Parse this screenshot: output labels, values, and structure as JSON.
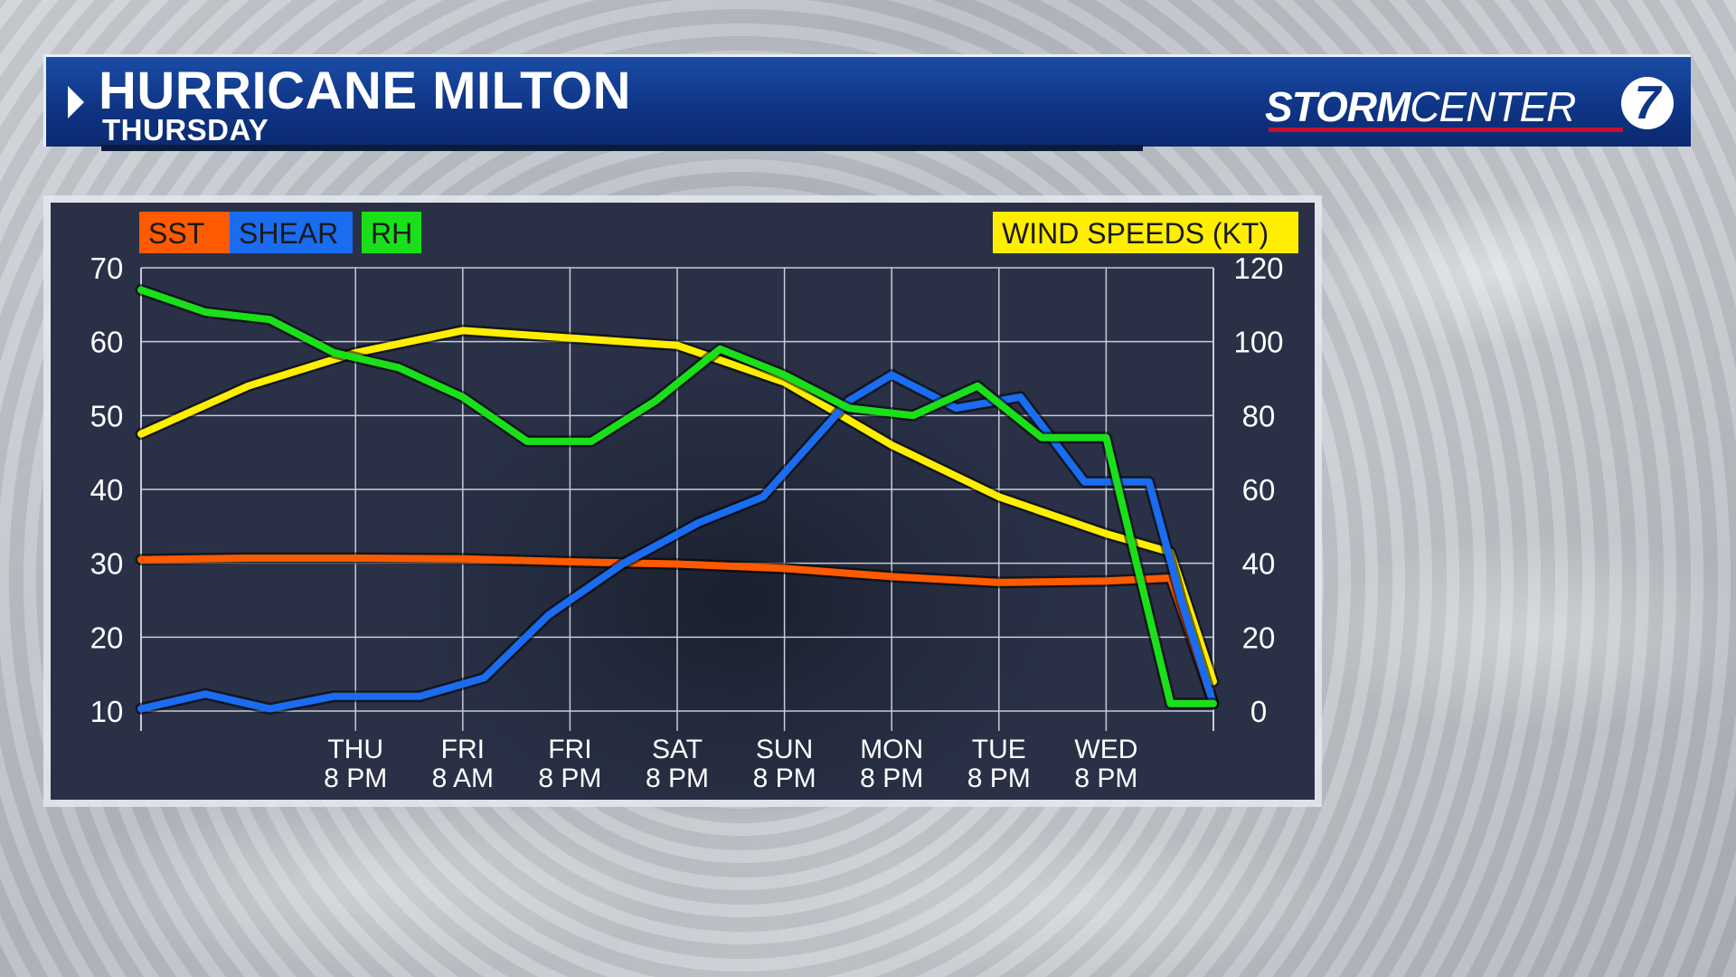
{
  "header": {
    "title": "HURRICANE MILTON",
    "subtitle": "THURSDAY",
    "logo_bold": "STORM",
    "logo_rest": "CENTER",
    "logo_number": "7"
  },
  "colors": {
    "sst": "#ff5a00",
    "shear": "#1a6cf0",
    "rh": "#1ae01a",
    "wind": "#ffee00",
    "panel_bg": "#2a3147",
    "header_blue": "#0f3586",
    "logo_red": "#c8102e"
  },
  "chart_data": {
    "type": "line",
    "legend": {
      "left": [
        "SST",
        "SHEAR",
        "RH"
      ],
      "right": "WIND SPEEDS (KT)"
    },
    "x_categories": [
      [
        "THU",
        "8 PM"
      ],
      [
        "FRI",
        "8 AM"
      ],
      [
        "FRI",
        "8 PM"
      ],
      [
        "SAT",
        "8 PM"
      ],
      [
        "SUN",
        "8 PM"
      ],
      [
        "MON",
        "8 PM"
      ],
      [
        "TUE",
        "8 PM"
      ],
      [
        "WED",
        "8 PM"
      ]
    ],
    "x_tick_positions": [
      1.0,
      2.0,
      3.0,
      4.0,
      5.0,
      6.0,
      7.0,
      8.0
    ],
    "x_range": [
      -1,
      9
    ],
    "left_axis": {
      "ticks": [
        10,
        20,
        30,
        40,
        50,
        60,
        70
      ],
      "ylim": [
        10,
        70
      ]
    },
    "right_axis": {
      "ticks": [
        0,
        20,
        40,
        60,
        80,
        100,
        120
      ],
      "ylim": [
        0,
        120
      ]
    },
    "series": [
      {
        "name": "SST",
        "axis": "left",
        "color_key": "sst",
        "x": [
          -1,
          0,
          1,
          2,
          3,
          4,
          5,
          6,
          7,
          8,
          8.6
        ],
        "y": [
          30.5,
          30.7,
          30.7,
          30.6,
          30.2,
          29.9,
          29.3,
          28.2,
          27.4,
          27.6,
          28.0
        ],
        "x_end": [
          8.6,
          9.0
        ],
        "y_end": [
          28.0,
          11.0
        ]
      },
      {
        "name": "SHEAR",
        "axis": "left",
        "color_key": "shear",
        "x": [
          -1,
          -0.4,
          0.2,
          0.8,
          1.6,
          2.2,
          2.8,
          3.5,
          4.2,
          4.8,
          5.6,
          6.0,
          6.6,
          7.2,
          7.8,
          8.4,
          8.7,
          9.0
        ],
        "y": [
          10.3,
          12.3,
          10.3,
          12.0,
          12.0,
          14.5,
          23.0,
          30.0,
          35.5,
          39.0,
          52.0,
          55.5,
          51.0,
          52.5,
          41.0,
          41.0,
          25.0,
          11.0
        ]
      },
      {
        "name": "RH",
        "axis": "left",
        "color_key": "rh",
        "x": [
          -1,
          -0.4,
          0.2,
          0.8,
          1.4,
          2.0,
          2.6,
          3.2,
          3.8,
          4.4,
          5.0,
          5.6,
          6.2,
          6.8,
          7.4,
          8.0,
          8.6,
          9.0
        ],
        "y": [
          67.0,
          64.0,
          63.0,
          58.5,
          56.5,
          52.5,
          46.5,
          46.5,
          52.0,
          59.0,
          55.5,
          51.0,
          50.0,
          54.0,
          47.0,
          47.0,
          11.0,
          11.0
        ]
      },
      {
        "name": "WIND SPEEDS (KT)",
        "axis": "right",
        "color_key": "wind",
        "x": [
          -1,
          0,
          1,
          2,
          3,
          4,
          5,
          6,
          7,
          8,
          8.6,
          9.0
        ],
        "y": [
          75,
          88,
          97,
          103,
          101,
          99,
          89,
          72,
          58,
          48,
          43,
          8
        ]
      }
    ]
  }
}
